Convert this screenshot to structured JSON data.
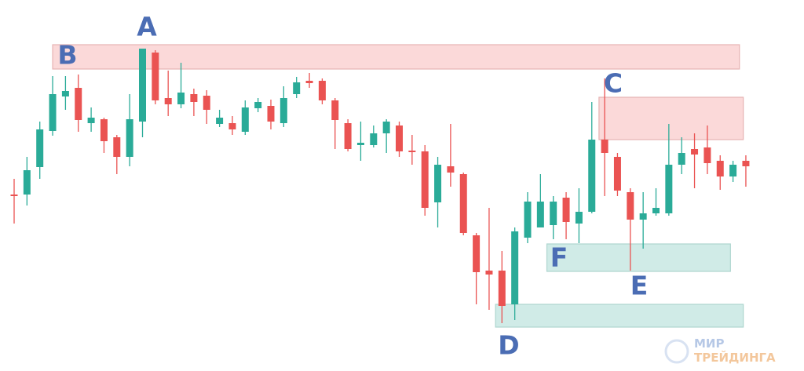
{
  "chart_data": {
    "type": "candlestick",
    "up_color": "#2aab98",
    "down_color": "#ea5352",
    "ylim": [
      0,
      473
    ],
    "open": [
      225,
      225,
      260,
      306,
      350,
      361,
      316,
      321,
      298,
      273,
      318,
      406,
      348,
      340,
      353,
      351,
      315,
      316,
      305,
      335,
      338,
      316,
      353,
      370,
      370,
      345,
      316,
      288,
      288,
      303,
      313,
      281,
      280,
      215,
      261,
      251,
      173,
      128,
      128,
      85,
      170,
      183,
      186,
      221,
      188,
      203,
      295,
      273,
      228,
      193,
      201,
      201,
      263,
      283,
      285,
      268,
      248,
      268
    ],
    "high": [
      245,
      273,
      318,
      376,
      376,
      378,
      336,
      323,
      301,
      353,
      411,
      409,
      383,
      393,
      360,
      358,
      333,
      325,
      345,
      348,
      346,
      363,
      375,
      380,
      373,
      348,
      321,
      318,
      313,
      321,
      318,
      301,
      288,
      273,
      315,
      253,
      176,
      208,
      153,
      183,
      228,
      251,
      223,
      228,
      233,
      343,
      373,
      278,
      233,
      228,
      233,
      315,
      298,
      303,
      313,
      275,
      268,
      275
    ],
    "low": [
      188,
      211,
      245,
      300,
      333,
      305,
      305,
      278,
      251,
      261,
      298,
      340,
      325,
      335,
      325,
      315,
      311,
      301,
      301,
      330,
      308,
      311,
      348,
      361,
      340,
      283,
      280,
      268,
      285,
      278,
      273,
      263,
      198,
      183,
      235,
      173,
      85,
      78,
      61,
      65,
      163,
      183,
      168,
      168,
      163,
      201,
      223,
      223,
      128,
      156,
      198,
      198,
      251,
      233,
      251,
      231,
      241,
      235
    ],
    "close": [
      223,
      256,
      308,
      353,
      357,
      320,
      323,
      293,
      273,
      321,
      411,
      345,
      340,
      355,
      343,
      333,
      323,
      308,
      336,
      343,
      318,
      348,
      368,
      367,
      345,
      320,
      283,
      291,
      303,
      318,
      280,
      279,
      208,
      263,
      253,
      176,
      126,
      123,
      83,
      178,
      216,
      216,
      216,
      190,
      203,
      295,
      278,
      230,
      193,
      201,
      208,
      263,
      278,
      276,
      265,
      248,
      263,
      261
    ],
    "zones": [
      {
        "kind": "resistance",
        "x_range": [
          3,
          56.5
        ],
        "ylow": 385,
        "yhigh": 416
      },
      {
        "kind": "resistance",
        "x_range": [
          45.56,
          56.8
        ],
        "ylow": 295,
        "yhigh": 349
      },
      {
        "kind": "support",
        "x_range": [
          41.5,
          55.8
        ],
        "ylow": 127,
        "yhigh": 162
      },
      {
        "kind": "support",
        "x_range": [
          37.5,
          56.8
        ],
        "ylow": 56,
        "yhigh": 85
      }
    ],
    "annotations": [
      "A",
      "B",
      "C",
      "D",
      "E",
      "F"
    ]
  },
  "logo": {
    "line1": "МИР",
    "line2": "ТРЕЙДИНГА"
  }
}
